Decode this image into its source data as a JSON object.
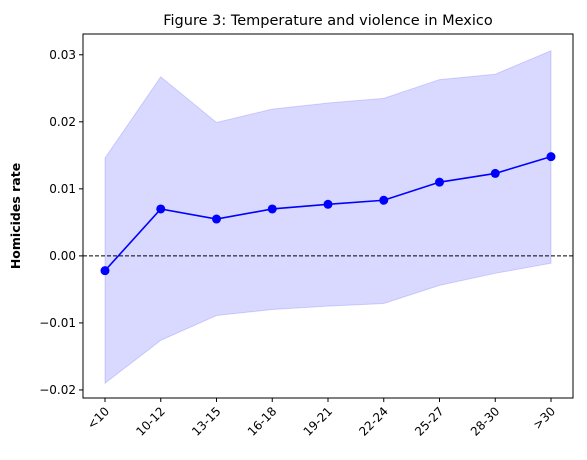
{
  "chart_data": {
    "type": "line",
    "title": "Figure 3: Temperature and violence in Mexico",
    "xlabel": "",
    "ylabel": "Homicides rate",
    "categories": [
      "<10",
      "10-12",
      "13-15",
      "16-18",
      "19-21",
      "22-24",
      "25-27",
      "28-30",
      ">30"
    ],
    "series": [
      {
        "values": [
          -0.0022,
          0.007,
          0.0055,
          0.007,
          0.0077,
          0.0083,
          0.011,
          0.0123,
          0.0148
        ],
        "lower": [
          -0.019,
          -0.0126,
          -0.0089,
          -0.008,
          -0.0075,
          -0.0071,
          -0.0044,
          -0.0026,
          -0.0011
        ],
        "upper": [
          0.0146,
          0.0267,
          0.0199,
          0.0219,
          0.0228,
          0.0235,
          0.0263,
          0.0271,
          0.0306
        ],
        "color": "#0000ff"
      }
    ],
    "ylim": [
      -0.0212,
      0.0331
    ],
    "yticks": [
      -0.02,
      -0.01,
      0.0,
      0.01,
      0.02,
      0.03
    ],
    "ytick_labels": [
      "−0.02",
      "−0.01",
      "0.00",
      "0.01",
      "0.02",
      "0.03"
    ],
    "reference_line": {
      "y": 0.0,
      "style": "dashed",
      "color": "#000000"
    },
    "band_color": "#0000ff",
    "band_opacity": 0.15,
    "grid": false
  }
}
